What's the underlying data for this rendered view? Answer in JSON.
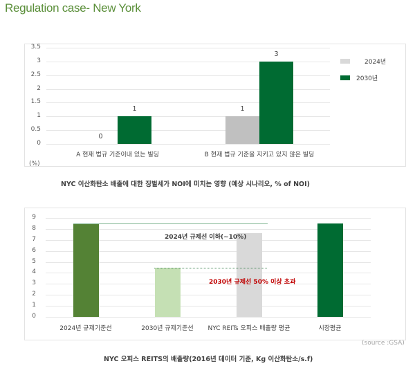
{
  "page": {
    "title": "Regulation case- New York",
    "accent_color": "#5b8f3a"
  },
  "chart_data": [
    {
      "type": "bar",
      "title": "NYC 이산화탄소 배출에 대한 징벌세가 NOI에 미치는 영향 (예상 시나리오, % of NOI)",
      "xlabel": "",
      "ylabel": "(%)",
      "ylim": [
        0,
        3.5
      ],
      "yticks": [
        "0",
        "0.5",
        "1",
        "1.5",
        "2",
        "2.5",
        "3",
        "3.5"
      ],
      "categories": [
        "A 현재 법규 기준이내 있는 빌딩",
        "B 현재 법규 기준을 지키고 있지 않은 빌딩"
      ],
      "series": [
        {
          "name": "2024년",
          "color": "#c0c0c0",
          "values": [
            0,
            1
          ],
          "labels": [
            "0",
            "1"
          ]
        },
        {
          "name": "2030년",
          "color": "#006b32",
          "values": [
            1,
            3
          ],
          "labels": [
            "1",
            "3"
          ]
        }
      ],
      "grid": true,
      "legend_position": "right"
    },
    {
      "type": "bar",
      "title": "NYC 오피스 REITS의 배출량(2016년 데이터 기준, Kg 이산화탄소/s.f)",
      "xlabel": "",
      "ylabel": "",
      "ylim": [
        0,
        9
      ],
      "yticks": [
        "0",
        "1",
        "2",
        "3",
        "4",
        "5",
        "6",
        "7",
        "8",
        "9"
      ],
      "categories": [
        "2024년 규제기준선",
        "2030년 규제기준선",
        "NYC REITs 오피스 배출량 평균",
        "시장평균"
      ],
      "values": [
        8.5,
        4.5,
        7.6,
        8.5
      ],
      "colors": [
        "#548235",
        "#c5e0b4",
        "#d9d9d9",
        "#006b32"
      ],
      "grid": true,
      "annotations": [
        {
          "text": "2024년 규제선 이하(~10%)",
          "color": "#404040",
          "reference_line": 8.5
        },
        {
          "text": "2030년 규제선 50% 이상 초과",
          "color": "#c00000",
          "reference_line": 4.5
        }
      ],
      "source": "(source :GSA)"
    }
  ]
}
